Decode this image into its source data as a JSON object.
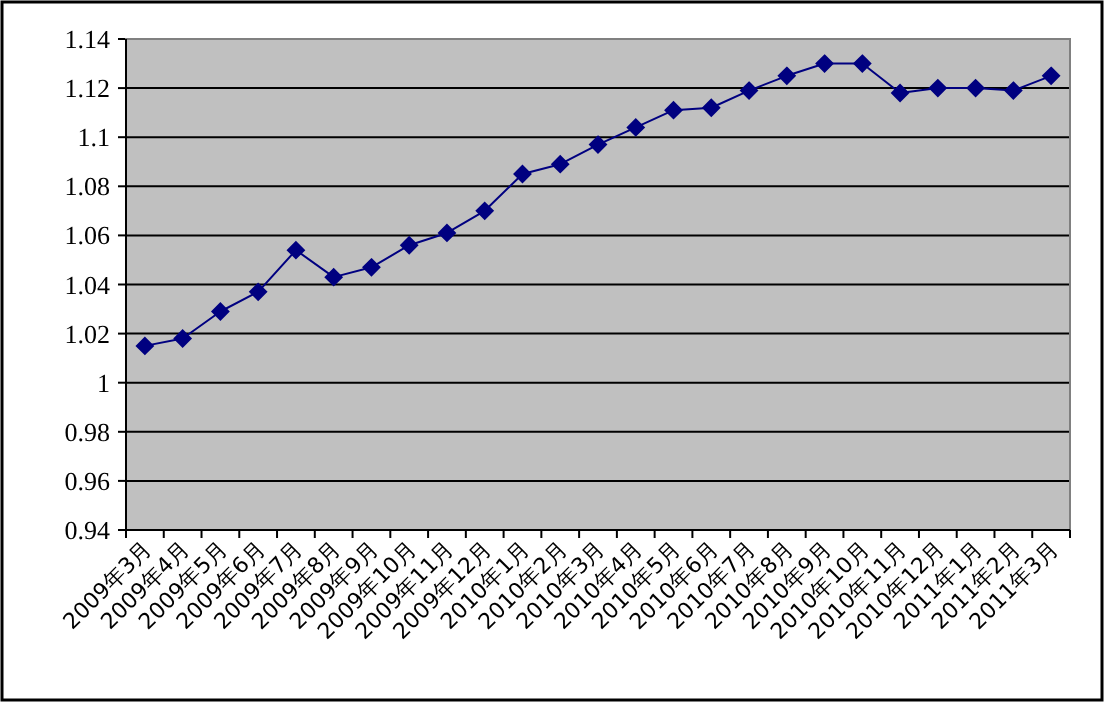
{
  "chart_data": {
    "type": "line",
    "categories": [
      "2009年3月",
      "2009年4月",
      "2009年5月",
      "2009年6月",
      "2009年7月",
      "2009年8月",
      "2009年9月",
      "2009年10月",
      "2009年11月",
      "2009年12月",
      "2010年1月",
      "2010年2月",
      "2010年3月",
      "2010年4月",
      "2010年5月",
      "2010年6月",
      "2010年7月",
      "2010年8月",
      "2010年9月",
      "2010年10月",
      "2010年11月",
      "2010年12月",
      "2011年1月",
      "2011年2月",
      "2011年3月"
    ],
    "values": [
      1.015,
      1.018,
      1.029,
      1.037,
      1.054,
      1.043,
      1.047,
      1.056,
      1.061,
      1.07,
      1.085,
      1.089,
      1.097,
      1.104,
      1.111,
      1.112,
      1.119,
      1.125,
      1.13,
      1.13,
      1.118,
      1.12,
      1.12,
      1.119,
      1.125
    ],
    "color": "#000080",
    "ylim": [
      0.94,
      1.14
    ],
    "yticks": [
      0.94,
      0.96,
      0.98,
      1,
      1.02,
      1.04,
      1.06,
      1.08,
      1.1,
      1.12,
      1.14
    ],
    "grid": "y",
    "marker": "diamond"
  }
}
